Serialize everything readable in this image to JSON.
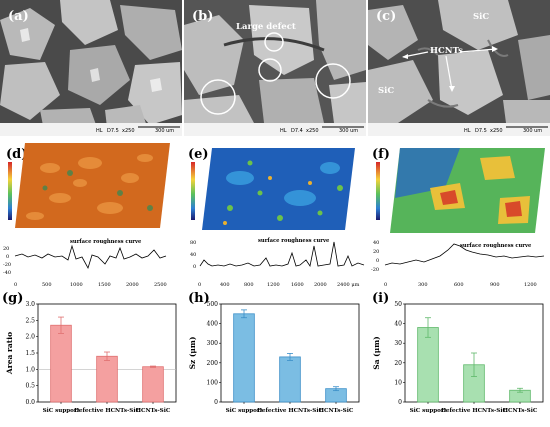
{
  "panels": {
    "a": {
      "label": "(a)",
      "scalebar": {
        "mode": "HL",
        "wd": "D7.5",
        "mag": "x250",
        "scale": "300 um"
      }
    },
    "b": {
      "label": "(b)",
      "annotation": "Large defect",
      "scalebar": {
        "mode": "HL",
        "wd": "D7.4",
        "mag": "x250",
        "scale": "300 um"
      }
    },
    "c": {
      "label": "(c)",
      "annotations": [
        "SiC",
        "HCNTs",
        "SiC"
      ],
      "scalebar": {
        "mode": "HL",
        "wd": "D7.5",
        "mag": "x250",
        "scale": "300 um"
      }
    },
    "d": {
      "label": "(d)",
      "curve_title": "surface roughness curve",
      "x_ticks": [
        "0",
        "500",
        "1000",
        "1500",
        "2000",
        "2500"
      ],
      "y_ticks": [
        "20",
        "0",
        "-20",
        "-40"
      ]
    },
    "e": {
      "label": "(e)",
      "curve_title": "surface roughness curve",
      "x_ticks": [
        "0",
        "400",
        "800",
        "1200",
        "1600",
        "2000",
        "2400 μm"
      ],
      "y_ticks": [
        "80",
        "40",
        "0"
      ]
    },
    "f": {
      "label": "(f)",
      "curve_title": "surface roughness curve",
      "x_ticks": [
        "0",
        "300",
        "600",
        "900",
        "1200"
      ],
      "y_ticks": [
        "40",
        "20",
        "0",
        "-20"
      ]
    },
    "g": {
      "label": "(g)"
    },
    "h": {
      "label": "(h)"
    },
    "i": {
      "label": "(i)"
    }
  },
  "chart_data": [
    {
      "type": "bar",
      "panel": "g",
      "categories": [
        "SiC support",
        "Defective HCNTs-SiC",
        "HCNTs-SiC"
      ],
      "values": [
        2.35,
        1.4,
        1.08
      ],
      "errors": [
        0.25,
        0.13,
        0.02
      ],
      "ylabel": "Area ratio",
      "ylim": [
        0,
        3.0
      ],
      "yticks": [
        "0.0",
        "0.5",
        "1.0",
        "1.5",
        "2.0",
        "2.5",
        "3.0"
      ],
      "reference_line": 1.0,
      "color": "#f4a0a0",
      "edge_color": "#e07070"
    },
    {
      "type": "bar",
      "panel": "h",
      "categories": [
        "SiC support",
        "Defective HCNTs-SiC",
        "HCNTs-SiC"
      ],
      "values": [
        450,
        230,
        68
      ],
      "errors": [
        20,
        18,
        10
      ],
      "ylabel": "Sz (μm)",
      "ylim": [
        0,
        500
      ],
      "yticks": [
        "0",
        "100",
        "200",
        "300",
        "400",
        "500"
      ],
      "color": "#7bbde3",
      "edge_color": "#3b8fc8"
    },
    {
      "type": "bar",
      "panel": "i",
      "categories": [
        "SiC support",
        "Defective HCNTs-SiC",
        "HCNTs-SiC"
      ],
      "values": [
        38,
        19,
        6
      ],
      "errors": [
        5,
        6,
        1
      ],
      "ylabel": "Sa (μm)",
      "ylim": [
        0,
        50
      ],
      "yticks": [
        "0",
        "10",
        "20",
        "30",
        "40",
        "50"
      ],
      "color": "#a8e0b0",
      "edge_color": "#5fb86a"
    }
  ]
}
